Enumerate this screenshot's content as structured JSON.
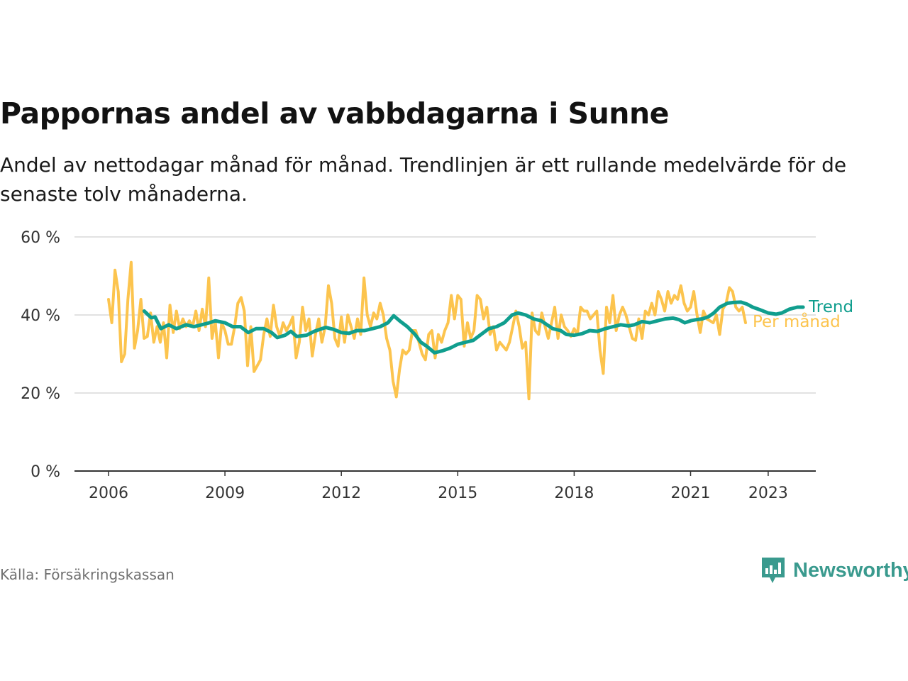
{
  "title": "Pappornas andel av vabbdagarna i Sunne",
  "subtitle": "Andel av nettodagar månad för månad. Trendlinjen är ett rullande medelvärde för de senaste tolv månaderna.",
  "source": "Källa: Försäkringskassan",
  "brand": "Newsworthy",
  "colors": {
    "monthly": "#fcc44e",
    "trend": "#109e8e",
    "grid": "#d9d9d9",
    "axis": "#333333",
    "brand": "#3a9a8e"
  },
  "chart_data": {
    "type": "line",
    "x_unit": "year",
    "y_unit": "%",
    "ylim": [
      0,
      60
    ],
    "xlim": [
      2005.6,
      2024.6
    ],
    "y_ticks": [
      0,
      20,
      40,
      60
    ],
    "y_tick_labels": [
      "0 %",
      "20 %",
      "40 %",
      "60 %"
    ],
    "x_ticks": [
      2006,
      2009,
      2012,
      2015,
      2018,
      2021,
      2023
    ],
    "x_tick_labels": [
      "2006",
      "2009",
      "2012",
      "2015",
      "2018",
      "2021",
      "2023"
    ],
    "grid": "horizontal",
    "legend": "end-of-line labels",
    "series": [
      {
        "name": "Per månad",
        "color": "#fcc44e",
        "x_start": 2006.0,
        "step": 0.08333,
        "values": [
          44,
          38,
          51.5,
          46,
          28,
          30,
          44,
          53.5,
          31.5,
          36,
          44,
          34,
          34.5,
          40.5,
          33,
          37,
          33,
          38,
          29,
          42.5,
          35.5,
          41,
          36.5,
          39,
          37,
          38.5,
          37,
          41,
          36,
          41.5,
          37,
          49.5,
          34,
          38.5,
          29,
          38,
          36,
          32.5,
          32.5,
          37,
          43,
          44.5,
          41,
          27,
          37,
          25.5,
          27,
          28.5,
          35,
          39,
          34.5,
          42.5,
          37,
          34.5,
          38,
          36,
          37.5,
          39.5,
          29,
          33,
          42,
          36,
          39,
          29.5,
          35,
          39,
          33,
          37,
          47.5,
          43,
          34,
          32,
          39.5,
          33,
          40,
          37,
          34,
          39,
          35,
          49.5,
          40,
          37,
          40.5,
          39,
          43,
          40,
          34,
          31,
          23,
          19,
          26,
          31,
          30,
          31,
          36,
          36,
          33,
          30,
          28.5,
          35,
          36,
          29,
          35,
          33,
          36,
          38,
          45,
          39,
          45,
          44,
          32,
          38,
          34,
          36,
          45,
          44,
          39,
          42,
          35,
          37,
          31,
          33,
          32,
          31,
          33,
          37,
          41,
          37,
          31.5,
          33,
          18.5,
          40.5,
          36,
          35,
          40.5,
          37,
          34,
          38,
          42,
          34,
          40,
          37,
          36,
          34.5,
          36.5,
          35,
          42,
          41,
          41,
          39,
          40,
          41,
          31,
          25,
          42,
          38,
          45,
          36,
          40,
          42,
          40,
          37,
          34,
          33.5,
          39,
          34,
          41,
          40,
          43,
          40,
          46,
          44,
          41,
          46,
          43,
          45,
          44,
          47.5,
          43,
          41,
          42,
          46,
          40,
          35.5,
          41,
          39,
          38.5,
          38,
          40,
          35,
          41.5,
          43,
          47,
          46,
          42,
          41,
          42,
          38
        ]
      },
      {
        "name": "Trend",
        "color": "#109e8e",
        "points": [
          [
            2006.92,
            41
          ],
          [
            2007.1,
            39.3
          ],
          [
            2007.2,
            39.5
          ],
          [
            2007.35,
            36.5
          ],
          [
            2007.55,
            37.5
          ],
          [
            2007.75,
            36.5
          ],
          [
            2008.0,
            37.5
          ],
          [
            2008.2,
            37
          ],
          [
            2008.4,
            37.5
          ],
          [
            2008.6,
            38
          ],
          [
            2008.75,
            38.5
          ],
          [
            2009.0,
            38
          ],
          [
            2009.2,
            37
          ],
          [
            2009.4,
            37
          ],
          [
            2009.6,
            35.5
          ],
          [
            2009.8,
            36.5
          ],
          [
            2010.0,
            36.5
          ],
          [
            2010.2,
            35.5
          ],
          [
            2010.35,
            34.2
          ],
          [
            2010.55,
            34.8
          ],
          [
            2010.7,
            35.8
          ],
          [
            2010.85,
            34.5
          ],
          [
            2011.1,
            34.8
          ],
          [
            2011.3,
            35.8
          ],
          [
            2011.5,
            36.5
          ],
          [
            2011.6,
            36.8
          ],
          [
            2011.8,
            36.3
          ],
          [
            2012.0,
            35.5
          ],
          [
            2012.2,
            35.3
          ],
          [
            2012.4,
            36
          ],
          [
            2012.6,
            36
          ],
          [
            2012.8,
            36.5
          ],
          [
            2013.0,
            37
          ],
          [
            2013.2,
            38
          ],
          [
            2013.35,
            39.8
          ],
          [
            2013.5,
            38.5
          ],
          [
            2013.7,
            37
          ],
          [
            2013.9,
            35
          ],
          [
            2014.05,
            33
          ],
          [
            2014.2,
            32
          ],
          [
            2014.4,
            30.3
          ],
          [
            2014.6,
            30.8
          ],
          [
            2014.8,
            31.5
          ],
          [
            2015.0,
            32.5
          ],
          [
            2015.2,
            33
          ],
          [
            2015.4,
            33.5
          ],
          [
            2015.6,
            35
          ],
          [
            2015.8,
            36.5
          ],
          [
            2016.0,
            37
          ],
          [
            2016.2,
            38
          ],
          [
            2016.4,
            40
          ],
          [
            2016.55,
            40.5
          ],
          [
            2016.75,
            40
          ],
          [
            2016.95,
            39
          ],
          [
            2017.15,
            38.5
          ],
          [
            2017.3,
            37.5
          ],
          [
            2017.45,
            36.5
          ],
          [
            2017.65,
            36
          ],
          [
            2017.8,
            35
          ],
          [
            2018.0,
            34.8
          ],
          [
            2018.2,
            35.2
          ],
          [
            2018.4,
            36
          ],
          [
            2018.6,
            35.8
          ],
          [
            2018.8,
            36.5
          ],
          [
            2019.0,
            37
          ],
          [
            2019.2,
            37.5
          ],
          [
            2019.4,
            37.2
          ],
          [
            2019.55,
            37.5
          ],
          [
            2019.75,
            38.3
          ],
          [
            2019.95,
            38
          ],
          [
            2020.15,
            38.5
          ],
          [
            2020.35,
            39
          ],
          [
            2020.55,
            39.2
          ],
          [
            2020.7,
            38.8
          ],
          [
            2020.85,
            38
          ],
          [
            2021.0,
            38.5
          ],
          [
            2021.15,
            38.8
          ],
          [
            2021.3,
            39
          ],
          [
            2021.45,
            39.5
          ],
          [
            2021.6,
            40.5
          ],
          [
            2021.75,
            42
          ],
          [
            2021.95,
            43
          ],
          [
            2022.1,
            43.2
          ],
          [
            2022.3,
            43.3
          ],
          [
            2022.45,
            42.8
          ],
          [
            2022.6,
            42
          ],
          [
            2022.8,
            41.3
          ],
          [
            2023.0,
            40.5
          ],
          [
            2023.2,
            40.2
          ],
          [
            2023.35,
            40.5
          ],
          [
            2023.55,
            41.5
          ],
          [
            2023.75,
            42
          ],
          [
            2023.9,
            42
          ]
        ]
      }
    ]
  }
}
